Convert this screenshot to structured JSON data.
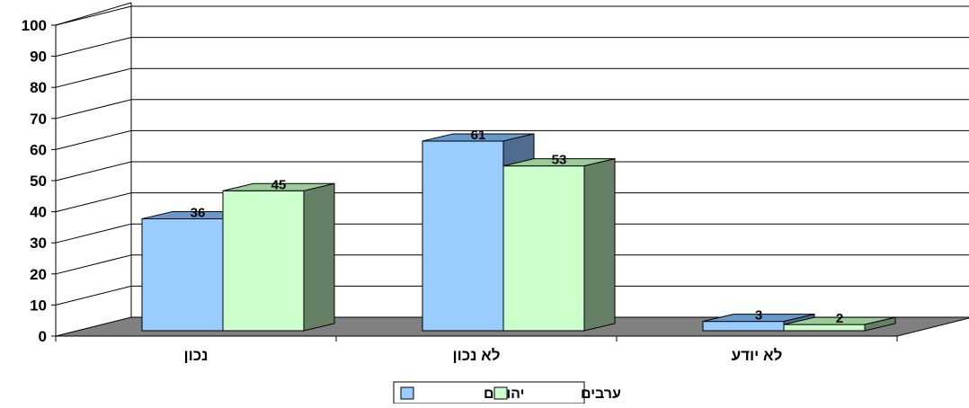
{
  "chart_data": {
    "type": "bar",
    "title": "",
    "xlabel": "",
    "ylabel": "",
    "categories": [
      "נכון",
      "לא נכון",
      "לא יודע"
    ],
    "series": [
      {
        "name": "יהודים",
        "values": [
          36,
          61,
          3
        ],
        "color": "#99ccff",
        "top_color": "#6699cc",
        "side_color": "#4f6b8f"
      },
      {
        "name": "ערבים",
        "values": [
          45,
          53,
          2
        ],
        "color": "#ccffcc",
        "top_color": "#99cc99",
        "side_color": "#668066"
      }
    ],
    "ylim": [
      0,
      100
    ],
    "yticks": [
      0,
      10,
      20,
      30,
      40,
      50,
      60,
      70,
      80,
      90,
      100
    ],
    "grid": true,
    "legend_position": "bottom",
    "floor_color": "#808080"
  }
}
